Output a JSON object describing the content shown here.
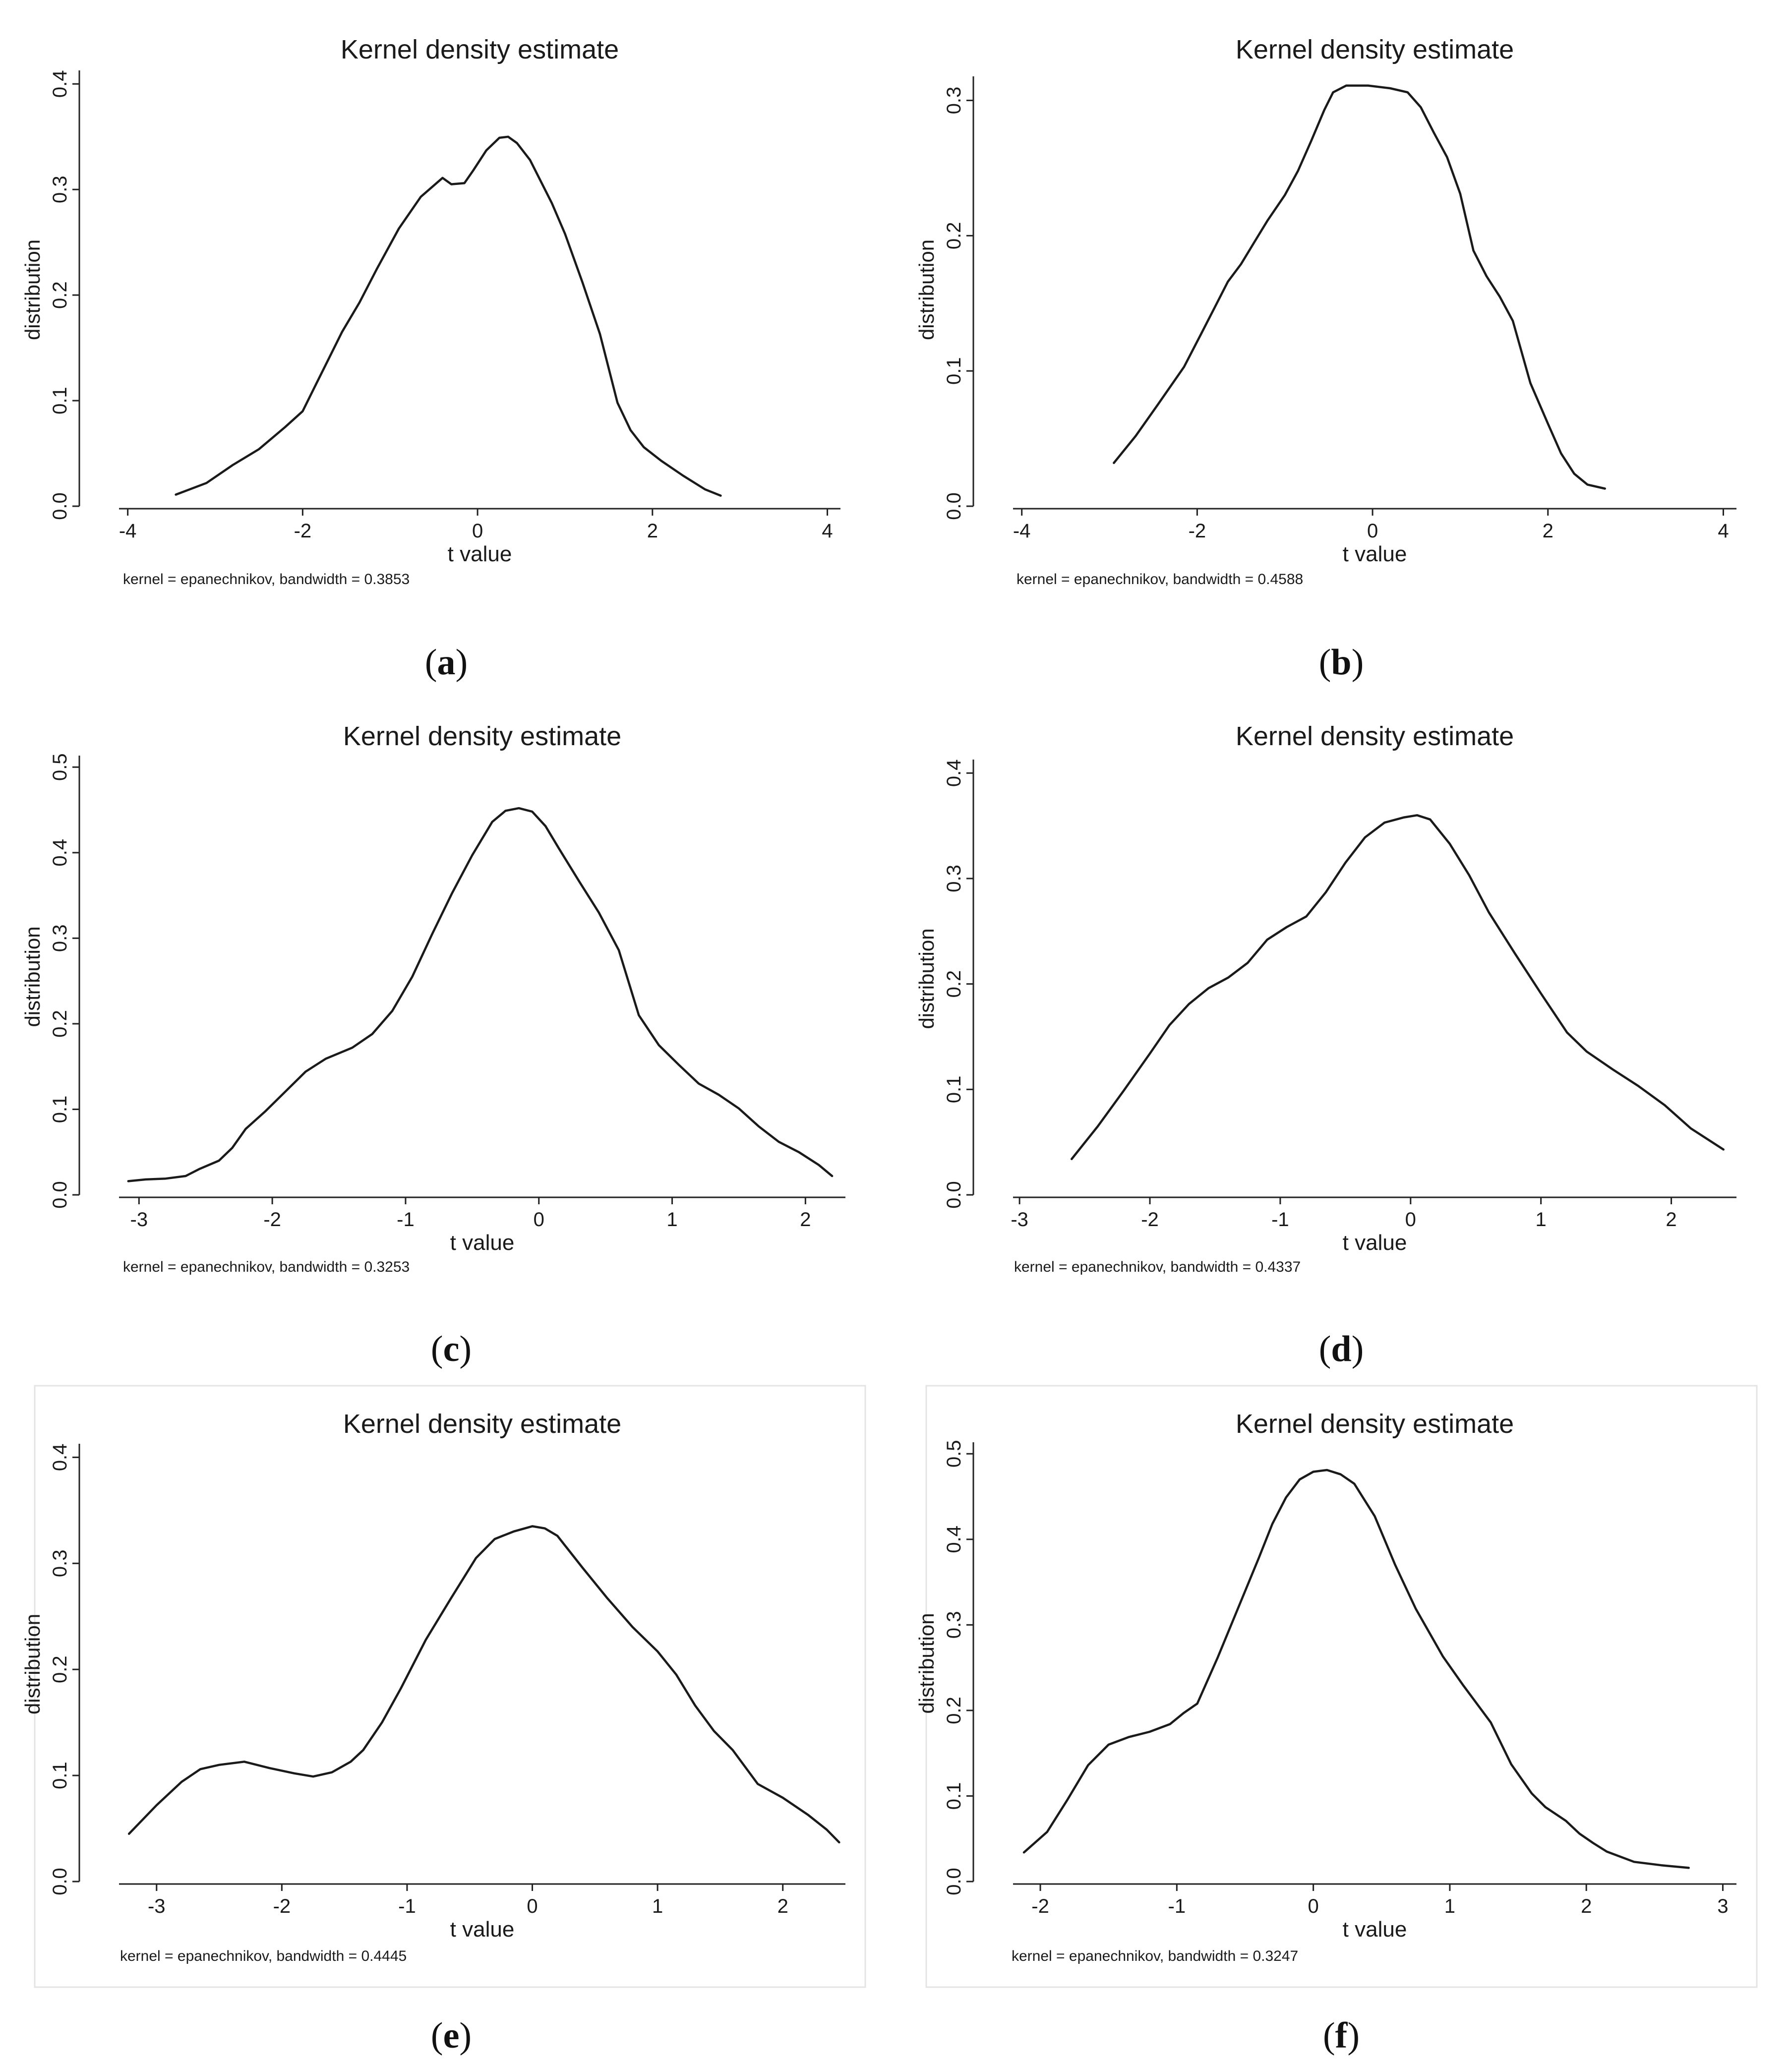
{
  "panels": [
    {
      "id": "a",
      "label": "(a)",
      "letter": "a",
      "caption": "kernel = epanechnikov, bandwidth = 0.3853"
    },
    {
      "id": "b",
      "label": "(b)",
      "letter": "b",
      "caption": "kernel = epanechnikov, bandwidth = 0.4588"
    },
    {
      "id": "c",
      "label": "(c)",
      "letter": "c",
      "caption": "kernel = epanechnikov, bandwidth = 0.3253"
    },
    {
      "id": "d",
      "label": "(d)",
      "letter": "d",
      "caption": "kernel = epanechnikov, bandwidth = 0.4337"
    },
    {
      "id": "e",
      "label": "(e)",
      "letter": "e",
      "caption": "kernel = epanechnikov, bandwidth = 0.4445"
    },
    {
      "id": "f",
      "label": "(f)",
      "letter": "f",
      "caption": "kernel = epanechnikov, bandwidth = 0.3247"
    }
  ],
  "chart_data": [
    {
      "type": "line",
      "title": "Kernel density estimate",
      "xlabel": "t value",
      "ylabel": "distribution",
      "xlim": [
        -4.1,
        4.15
      ],
      "ylim": [
        0,
        0.41
      ],
      "xticks": [
        -4,
        -2,
        0,
        2,
        4
      ],
      "xtick_labels": [
        "-4",
        "-2",
        "0",
        "2",
        "4"
      ],
      "yticks": [
        0,
        0.1,
        0.2,
        0.3,
        0.4
      ],
      "ytick_labels": [
        "0.0",
        "0.1",
        "0.2",
        "0.3",
        "0.4"
      ],
      "series": [
        {
          "name": "density",
          "x": [
            -3.45,
            -3.1,
            -2.8,
            -2.5,
            -2.2,
            -2.0,
            -1.85,
            -1.7,
            -1.55,
            -1.35,
            -1.15,
            -0.9,
            -0.65,
            -0.4,
            -0.3,
            -0.15,
            -0.05,
            0.1,
            0.25,
            0.35,
            0.45,
            0.6,
            0.85,
            1.0,
            1.2,
            1.4,
            1.6,
            1.75,
            1.9,
            2.1,
            2.35,
            2.6,
            2.78
          ],
          "y": [
            0.011,
            0.022,
            0.039,
            0.054,
            0.075,
            0.09,
            0.115,
            0.14,
            0.165,
            0.193,
            0.225,
            0.263,
            0.293,
            0.311,
            0.305,
            0.306,
            0.318,
            0.337,
            0.349,
            0.35,
            0.344,
            0.328,
            0.287,
            0.258,
            0.212,
            0.163,
            0.098,
            0.072,
            0.056,
            0.043,
            0.029,
            0.016,
            0.01
          ]
        }
      ]
    },
    {
      "type": "line",
      "title": "Kernel density estimate",
      "xlabel": "t value",
      "ylabel": "distribution",
      "xlim": [
        -4.1,
        4.15
      ],
      "ylim": [
        0,
        0.32
      ],
      "xticks": [
        -4,
        -2,
        0,
        2,
        4
      ],
      "xtick_labels": [
        "-4",
        "-2",
        "0",
        "2",
        "4"
      ],
      "yticks": [
        0,
        0.1,
        0.2,
        0.3
      ],
      "ytick_labels": [
        "0.0",
        "0.1",
        "0.2",
        "0.3"
      ],
      "series": [
        {
          "name": "density",
          "x": [
            -2.95,
            -2.7,
            -2.45,
            -2.15,
            -1.95,
            -1.8,
            -1.65,
            -1.5,
            -1.35,
            -1.2,
            -1.0,
            -0.85,
            -0.7,
            -0.55,
            -0.45,
            -0.3,
            -0.05,
            0.2,
            0.4,
            0.55,
            0.7,
            0.85,
            1.0,
            1.15,
            1.3,
            1.45,
            1.6,
            1.8,
            2.0,
            2.15,
            2.3,
            2.45,
            2.65
          ],
          "y": [
            0.032,
            0.052,
            0.075,
            0.103,
            0.128,
            0.147,
            0.166,
            0.179,
            0.195,
            0.211,
            0.23,
            0.248,
            0.27,
            0.293,
            0.306,
            0.311,
            0.311,
            0.309,
            0.306,
            0.295,
            0.276,
            0.258,
            0.231,
            0.189,
            0.17,
            0.155,
            0.137,
            0.091,
            0.061,
            0.039,
            0.024,
            0.016,
            0.013
          ]
        }
      ]
    },
    {
      "type": "line",
      "title": "Kernel density estimate",
      "xlabel": "t value",
      "ylabel": "distribution",
      "xlim": [
        -3.15,
        2.3
      ],
      "ylim": [
        0,
        0.51
      ],
      "xticks": [
        -3,
        -2,
        -1,
        0,
        1,
        2
      ],
      "xtick_labels": [
        "-3",
        "-2",
        "-1",
        "0",
        "1",
        "2"
      ],
      "yticks": [
        0,
        0.1,
        0.2,
        0.3,
        0.4,
        0.5
      ],
      "ytick_labels": [
        "0.0",
        "0.1",
        "0.2",
        "0.3",
        "0.4",
        "0.5"
      ],
      "series": [
        {
          "name": "density",
          "x": [
            -3.08,
            -2.95,
            -2.8,
            -2.65,
            -2.55,
            -2.4,
            -2.3,
            -2.2,
            -2.05,
            -1.9,
            -1.75,
            -1.6,
            -1.4,
            -1.25,
            -1.1,
            -0.95,
            -0.8,
            -0.65,
            -0.5,
            -0.35,
            -0.25,
            -0.15,
            -0.05,
            0.05,
            0.15,
            0.3,
            0.45,
            0.6,
            0.75,
            0.9,
            1.05,
            1.2,
            1.35,
            1.5,
            1.65,
            1.8,
            1.95,
            2.1,
            2.2
          ],
          "y": [
            0.016,
            0.018,
            0.019,
            0.022,
            0.03,
            0.04,
            0.055,
            0.077,
            0.098,
            0.121,
            0.144,
            0.159,
            0.172,
            0.188,
            0.215,
            0.255,
            0.305,
            0.353,
            0.397,
            0.436,
            0.449,
            0.452,
            0.448,
            0.431,
            0.405,
            0.367,
            0.33,
            0.286,
            0.21,
            0.175,
            0.152,
            0.13,
            0.117,
            0.101,
            0.08,
            0.062,
            0.05,
            0.035,
            0.022
          ]
        }
      ]
    },
    {
      "type": "line",
      "title": "Kernel density estimate",
      "xlabel": "t value",
      "ylabel": "distribution",
      "xlim": [
        -3.05,
        2.5
      ],
      "ylim": [
        0,
        0.41
      ],
      "xticks": [
        -3,
        -2,
        -1,
        0,
        1,
        2
      ],
      "xtick_labels": [
        "-3",
        "-2",
        "-1",
        "0",
        "1",
        "2"
      ],
      "yticks": [
        0,
        0.1,
        0.2,
        0.3,
        0.4
      ],
      "ytick_labels": [
        "0.0",
        "0.1",
        "0.2",
        "0.3",
        "0.4"
      ],
      "series": [
        {
          "name": "density",
          "x": [
            -2.6,
            -2.4,
            -2.2,
            -2.0,
            -1.85,
            -1.7,
            -1.55,
            -1.4,
            -1.25,
            -1.1,
            -0.95,
            -0.8,
            -0.65,
            -0.5,
            -0.35,
            -0.2,
            -0.05,
            0.05,
            0.15,
            0.3,
            0.45,
            0.6,
            0.8,
            1.0,
            1.2,
            1.35,
            1.55,
            1.75,
            1.95,
            2.15,
            2.4
          ],
          "y": [
            0.034,
            0.065,
            0.099,
            0.134,
            0.161,
            0.181,
            0.196,
            0.206,
            0.22,
            0.242,
            0.254,
            0.264,
            0.287,
            0.315,
            0.339,
            0.353,
            0.358,
            0.36,
            0.356,
            0.333,
            0.303,
            0.268,
            0.229,
            0.191,
            0.154,
            0.136,
            0.119,
            0.103,
            0.085,
            0.063,
            0.043
          ]
        }
      ]
    },
    {
      "type": "line",
      "title": "Kernel density estimate",
      "xlabel": "t value",
      "ylabel": "distribution",
      "xlim": [
        -3.3,
        2.5
      ],
      "ylim": [
        0,
        0.41
      ],
      "xticks": [
        -3,
        -2,
        -1,
        0,
        1,
        2
      ],
      "xtick_labels": [
        "-3",
        "-2",
        "-1",
        "0",
        "1",
        "2"
      ],
      "yticks": [
        0,
        0.1,
        0.2,
        0.3,
        0.4
      ],
      "ytick_labels": [
        "0.0",
        "0.1",
        "0.2",
        "0.3",
        "0.4"
      ],
      "series": [
        {
          "name": "density",
          "x": [
            -3.22,
            -3.0,
            -2.8,
            -2.65,
            -2.5,
            -2.3,
            -2.1,
            -1.9,
            -1.75,
            -1.6,
            -1.45,
            -1.35,
            -1.2,
            -1.05,
            -0.85,
            -0.65,
            -0.45,
            -0.3,
            -0.15,
            0.0,
            0.1,
            0.2,
            0.4,
            0.6,
            0.8,
            1.0,
            1.15,
            1.3,
            1.45,
            1.6,
            1.8,
            2.0,
            2.2,
            2.35,
            2.45
          ],
          "y": [
            0.045,
            0.072,
            0.094,
            0.106,
            0.11,
            0.113,
            0.107,
            0.102,
            0.099,
            0.103,
            0.113,
            0.124,
            0.15,
            0.182,
            0.228,
            0.267,
            0.305,
            0.323,
            0.33,
            0.335,
            0.333,
            0.326,
            0.296,
            0.267,
            0.24,
            0.217,
            0.195,
            0.166,
            0.142,
            0.124,
            0.092,
            0.079,
            0.063,
            0.049,
            0.037
          ]
        }
      ]
    },
    {
      "type": "line",
      "title": "Kernel density estimate",
      "xlabel": "t value",
      "ylabel": "distribution",
      "xlim": [
        -2.2,
        3.1
      ],
      "ylim": [
        0,
        0.51
      ],
      "xticks": [
        -2,
        -1,
        0,
        1,
        2,
        3
      ],
      "xtick_labels": [
        "-2",
        "-1",
        "0",
        "1",
        "2",
        "3"
      ],
      "yticks": [
        0,
        0.1,
        0.2,
        0.3,
        0.4,
        0.5
      ],
      "ytick_labels": [
        "0.0",
        "0.1",
        "0.2",
        "0.3",
        "0.4",
        "0.5"
      ],
      "series": [
        {
          "name": "density",
          "x": [
            -2.12,
            -1.95,
            -1.8,
            -1.65,
            -1.5,
            -1.35,
            -1.2,
            -1.05,
            -0.95,
            -0.85,
            -0.7,
            -0.55,
            -0.4,
            -0.3,
            -0.2,
            -0.1,
            0.0,
            0.1,
            0.2,
            0.3,
            0.45,
            0.6,
            0.75,
            0.95,
            1.1,
            1.3,
            1.45,
            1.6,
            1.7,
            1.85,
            1.95,
            2.05,
            2.15,
            2.35,
            2.55,
            2.75
          ],
          "y": [
            0.034,
            0.058,
            0.096,
            0.136,
            0.16,
            0.169,
            0.175,
            0.184,
            0.197,
            0.208,
            0.262,
            0.32,
            0.378,
            0.418,
            0.449,
            0.47,
            0.479,
            0.481,
            0.476,
            0.465,
            0.427,
            0.37,
            0.319,
            0.263,
            0.229,
            0.186,
            0.137,
            0.103,
            0.087,
            0.071,
            0.056,
            0.045,
            0.035,
            0.023,
            0.019,
            0.016
          ]
        }
      ]
    }
  ]
}
